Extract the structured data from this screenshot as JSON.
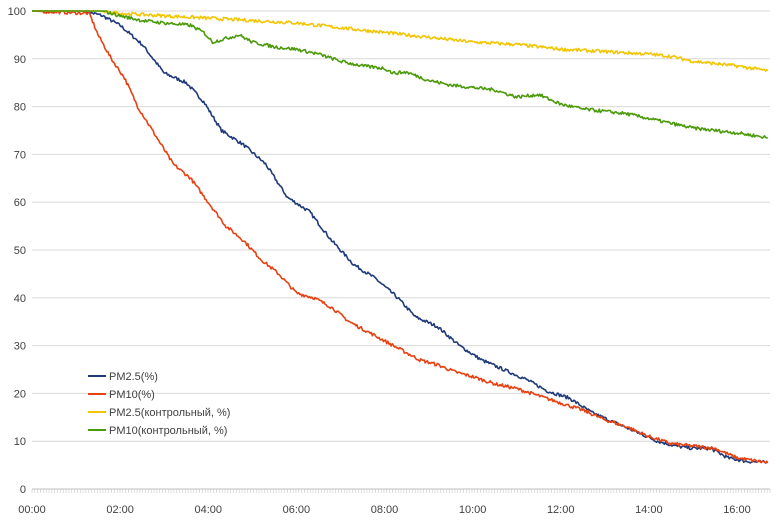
{
  "chart_data": {
    "type": "line",
    "title": "",
    "xlabel": "",
    "ylabel": "",
    "xlim": [
      0,
      16.75
    ],
    "ylim": [
      0,
      100
    ],
    "grid": "horizontal",
    "legend_position": "lower-left",
    "y_ticks": [
      0,
      10,
      20,
      30,
      40,
      50,
      60,
      70,
      80,
      90,
      100
    ],
    "x_ticks": [
      {
        "value": 0,
        "label": "00:00"
      },
      {
        "value": 2,
        "label": "02:00"
      },
      {
        "value": 4,
        "label": "04:00"
      },
      {
        "value": 6,
        "label": "06:00"
      },
      {
        "value": 8,
        "label": "08:00"
      },
      {
        "value": 10,
        "label": "10:00"
      },
      {
        "value": 12,
        "label": "12:00"
      },
      {
        "value": 14,
        "label": "14:00"
      },
      {
        "value": 16,
        "label": "16:00"
      }
    ],
    "series": [
      {
        "name": "PM2.5(%)",
        "color": "#1f3a7a",
        "points": [
          [
            0,
            100
          ],
          [
            1.2,
            100
          ],
          [
            1.6,
            99
          ],
          [
            2,
            97
          ],
          [
            2.5,
            93
          ],
          [
            3,
            87
          ],
          [
            3.5,
            85
          ],
          [
            3.9,
            81
          ],
          [
            4.3,
            75
          ],
          [
            4.8,
            72
          ],
          [
            5.3,
            68
          ],
          [
            5.8,
            61
          ],
          [
            6.3,
            58
          ],
          [
            6.8,
            52
          ],
          [
            7.3,
            47
          ],
          [
            7.8,
            44
          ],
          [
            8.3,
            40
          ],
          [
            8.7,
            36
          ],
          [
            9.2,
            34
          ],
          [
            9.7,
            30
          ],
          [
            10.2,
            27
          ],
          [
            10.7,
            25
          ],
          [
            11.2,
            23
          ],
          [
            11.7,
            20.5
          ],
          [
            12.2,
            19
          ],
          [
            12.7,
            16
          ],
          [
            13.2,
            14
          ],
          [
            13.7,
            12
          ],
          [
            14.2,
            10
          ],
          [
            14.6,
            9
          ],
          [
            15,
            8.5
          ],
          [
            15.4,
            8.5
          ],
          [
            15.8,
            6.5
          ],
          [
            16.2,
            5.8
          ],
          [
            16.7,
            5.5
          ]
        ]
      },
      {
        "name": "PM10(%)",
        "color": "#e84010",
        "points": [
          [
            0,
            100
          ],
          [
            1.3,
            99.5
          ],
          [
            1.5,
            95
          ],
          [
            1.8,
            90
          ],
          [
            2.1,
            86
          ],
          [
            2.4,
            80
          ],
          [
            2.8,
            74
          ],
          [
            3.2,
            68
          ],
          [
            3.6,
            65
          ],
          [
            4,
            60
          ],
          [
            4.4,
            55
          ],
          [
            4.8,
            52
          ],
          [
            5.2,
            48
          ],
          [
            5.6,
            45
          ],
          [
            6,
            41
          ],
          [
            6.4,
            40
          ],
          [
            6.8,
            38
          ],
          [
            7.2,
            35
          ],
          [
            7.6,
            33
          ],
          [
            8,
            31
          ],
          [
            8.4,
            29
          ],
          [
            8.8,
            27
          ],
          [
            9.2,
            26
          ],
          [
            9.6,
            24.5
          ],
          [
            10,
            23.5
          ],
          [
            10.5,
            22
          ],
          [
            11,
            21
          ],
          [
            11.5,
            19.5
          ],
          [
            12,
            18
          ],
          [
            12.5,
            16.5
          ],
          [
            13,
            14.5
          ],
          [
            13.5,
            13
          ],
          [
            14,
            11
          ],
          [
            14.5,
            9.5
          ],
          [
            15,
            9
          ],
          [
            15.5,
            8.5
          ],
          [
            16,
            6.5
          ],
          [
            16.7,
            5.5
          ]
        ]
      },
      {
        "name": "PM2.5(контрольный, %)",
        "color": "#f2c500",
        "points": [
          [
            0,
            100
          ],
          [
            1.5,
            100
          ],
          [
            2,
            99.5
          ],
          [
            3,
            99
          ],
          [
            4,
            98.5
          ],
          [
            5,
            98
          ],
          [
            6,
            97.5
          ],
          [
            7,
            96.5
          ],
          [
            8,
            95.5
          ],
          [
            9,
            94.5
          ],
          [
            10,
            93.5
          ],
          [
            11,
            93
          ],
          [
            12,
            92
          ],
          [
            13,
            91.5
          ],
          [
            14,
            91
          ],
          [
            14.5,
            90.5
          ],
          [
            15,
            89.5
          ],
          [
            15.5,
            89
          ],
          [
            16,
            88.5
          ],
          [
            16.7,
            87.5
          ]
        ]
      },
      {
        "name": "PM10(контрольный, %)",
        "color": "#4a9a0a",
        "points": [
          [
            0,
            100
          ],
          [
            1.6,
            100
          ],
          [
            2,
            99
          ],
          [
            2.5,
            98
          ],
          [
            3,
            97.5
          ],
          [
            3.6,
            97
          ],
          [
            3.9,
            95.5
          ],
          [
            4.1,
            93.5
          ],
          [
            4.5,
            94.5
          ],
          [
            4.7,
            95
          ],
          [
            5,
            93.5
          ],
          [
            5.5,
            92.5
          ],
          [
            6,
            92
          ],
          [
            6.5,
            91
          ],
          [
            7,
            89.5
          ],
          [
            7.5,
            88.5
          ],
          [
            8,
            88
          ],
          [
            8.2,
            87
          ],
          [
            8.5,
            87.2
          ],
          [
            9,
            85.5
          ],
          [
            9.5,
            84.5
          ],
          [
            10,
            84
          ],
          [
            10.5,
            83.5
          ],
          [
            11,
            82
          ],
          [
            11.5,
            82.5
          ],
          [
            12,
            80.5
          ],
          [
            12.5,
            79.5
          ],
          [
            13,
            79
          ],
          [
            13.5,
            78.5
          ],
          [
            14,
            77.5
          ],
          [
            14.5,
            76.5
          ],
          [
            15,
            75.5
          ],
          [
            15.5,
            75
          ],
          [
            16,
            74.5
          ],
          [
            16.7,
            73.5
          ]
        ]
      }
    ]
  }
}
